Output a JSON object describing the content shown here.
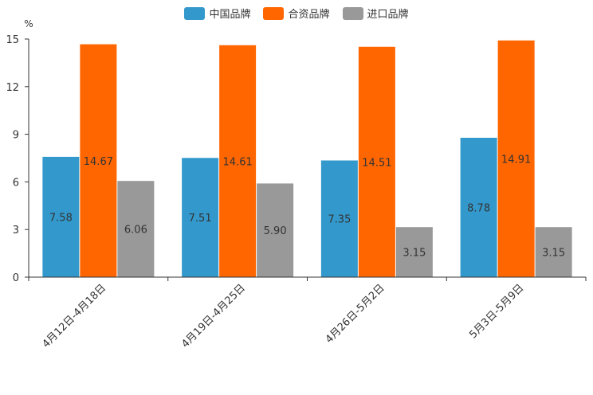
{
  "chart_data": {
    "type": "bar",
    "unit": "%",
    "categories": [
      "4月12日-4月18日",
      "4月19日-4月25日",
      "4月26日-5月2日",
      "5月3日-5月9日"
    ],
    "series": [
      {
        "name": "中国品牌",
        "color": "#3399cc",
        "values": [
          7.58,
          7.51,
          7.35,
          8.78
        ],
        "labels": [
          "7.58",
          "7.51",
          "7.35",
          "8.78"
        ]
      },
      {
        "name": "合资品牌",
        "color": "#ff6600",
        "values": [
          14.67,
          14.61,
          14.51,
          14.91
        ],
        "labels": [
          "14.67",
          "14.61",
          "14.51",
          "14.91"
        ]
      },
      {
        "name": "进口品牌",
        "color": "#999999",
        "values": [
          6.06,
          5.9,
          3.15,
          3.15
        ],
        "labels": [
          "6.06",
          "5.90",
          "3.15",
          "3.15"
        ]
      }
    ],
    "ylim": [
      0,
      15
    ],
    "yticks": [
      "0",
      "3",
      "6",
      "9",
      "12",
      "15"
    ],
    "legend": "top-center"
  }
}
